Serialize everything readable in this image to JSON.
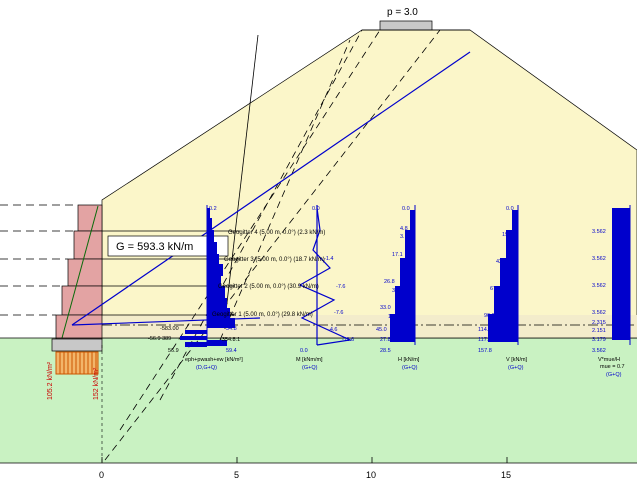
{
  "load_label": "p = 3.0",
  "weight_label": "G = 593.3 kN/m",
  "geogrids": [
    "Geogitter 4 (5.00 m, 0.0°) (2.3 kN/m)",
    "Geogitter 3 (5.00 m, 0.0°) (18.7 kN/m)",
    "Geogitter 2 (5.00 m, 0.0°) (30.9 kN/m)",
    "Geogitter 1 (5.00 m, 0.0°) (29.8 kN/m)"
  ],
  "ground_pressures": [
    "105.2 kN/m²",
    "152 kN/m²"
  ],
  "x_ticks": [
    "0",
    "5",
    "10",
    "15"
  ],
  "panels": {
    "earth_pressure": {
      "title_line1": "eph+pwash+ew [kN/m²]",
      "title_line2": "(D,G+Q)",
      "top": "0.2",
      "bottom": "56.9",
      "labels": [
        "-583.00",
        "-56.9 389",
        "34.8",
        "-354.8.1",
        "59.4"
      ]
    },
    "moment": {
      "title_line1": "M [kNm/m]",
      "title_line2": "(G+Q)",
      "top": "0.0",
      "bottom": "0.0",
      "labels": [
        "-1.4",
        "-7.6",
        "-7.6",
        "-4.6",
        "-11.6"
      ]
    },
    "shear_h": {
      "title_line1": "H [kN/m]",
      "title_line2": "(G+Q)",
      "top": "0.0",
      "bottom": "28.5",
      "labels": [
        "4.8",
        "3.1",
        "17.1",
        "3.6",
        "26.8",
        "3.8",
        "33.0",
        "19.6",
        "45.0",
        "27.8"
      ]
    },
    "shear_v": {
      "title_line1": "V [kN/m]",
      "title_line2": "(G+Q)",
      "top": "0.0",
      "bottom": "157.8",
      "labels": [
        "19.5",
        "42.1",
        "67.7",
        "96.0",
        "114.6",
        "117.7"
      ]
    },
    "ratio": {
      "title_line1": "V*mue/H",
      "title_line2": "(G+Q)",
      "top_mue": "mue = 0.7",
      "labels": [
        "3.562",
        "3.562",
        "3.562",
        "3.562",
        "3.562",
        "2.315",
        "2.151",
        "3.179",
        "3.562"
      ]
    }
  },
  "colors": {
    "fill_soil": "#fbf6c9",
    "ground": "#c9f2c2",
    "wall": "#e3a3a3",
    "diagram": "#0000cc",
    "load": "#c8c8c8"
  }
}
